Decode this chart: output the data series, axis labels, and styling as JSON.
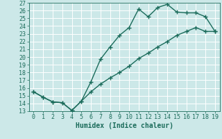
{
  "title": "",
  "xlabel": "Humidex (Indice chaleur)",
  "bg_color": "#cce8e8",
  "grid_color": "#ffffff",
  "line_color": "#1a6b5a",
  "x_upper": [
    0,
    1,
    2,
    3,
    4,
    5,
    6,
    7,
    8,
    9,
    10,
    11,
    12,
    13,
    14,
    15,
    16,
    17,
    18,
    19
  ],
  "y_upper": [
    15.5,
    14.8,
    14.2,
    14.1,
    13.1,
    14.3,
    16.8,
    19.7,
    21.3,
    22.8,
    23.8,
    26.2,
    25.2,
    26.4,
    26.8,
    25.8,
    25.7,
    25.7,
    25.2,
    23.3
  ],
  "x_lower": [
    0,
    1,
    2,
    3,
    4,
    5,
    6,
    7,
    8,
    9,
    10,
    11,
    12,
    13,
    14,
    15,
    16,
    17,
    18,
    19
  ],
  "y_lower": [
    15.5,
    14.8,
    14.2,
    14.1,
    13.1,
    14.3,
    15.5,
    16.5,
    17.3,
    18.0,
    18.8,
    19.8,
    20.5,
    21.3,
    22.0,
    22.8,
    23.3,
    23.8,
    23.3,
    23.3
  ],
  "xlim": [
    -0.5,
    19.5
  ],
  "ylim": [
    13,
    27
  ],
  "xticks": [
    0,
    1,
    2,
    3,
    4,
    5,
    6,
    7,
    8,
    9,
    10,
    11,
    12,
    13,
    14,
    15,
    16,
    17,
    18,
    19
  ],
  "yticks": [
    13,
    14,
    15,
    16,
    17,
    18,
    19,
    20,
    21,
    22,
    23,
    24,
    25,
    26,
    27
  ],
  "xlabel_fontsize": 7,
  "tick_fontsize": 6,
  "linewidth": 1.0,
  "marker": "+",
  "markersize": 4
}
